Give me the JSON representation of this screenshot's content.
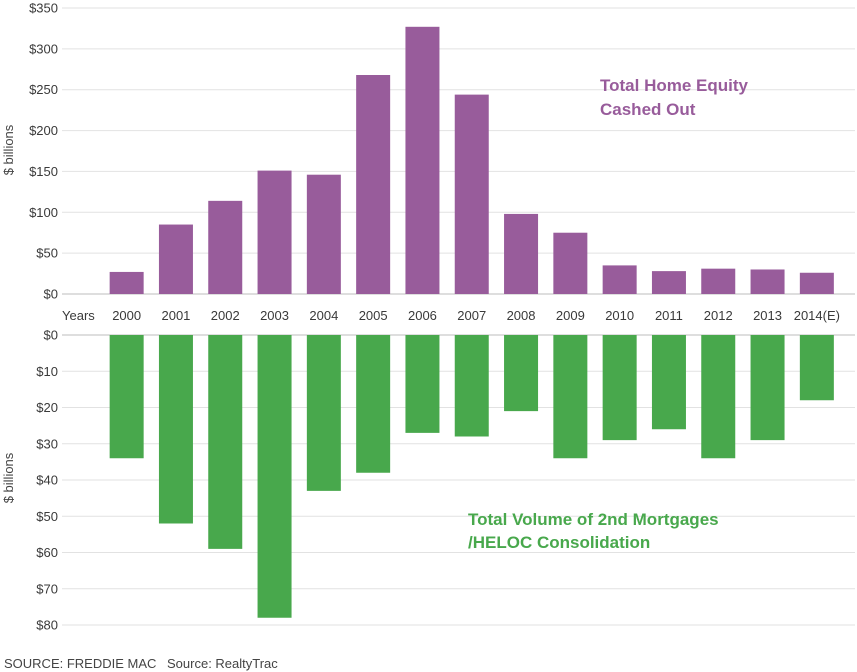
{
  "chart_data": [
    {
      "type": "bar",
      "categories": [
        "2000",
        "2001",
        "2002",
        "2003",
        "2004",
        "2005",
        "2006",
        "2007",
        "2008",
        "2009",
        "2010",
        "2011",
        "2012",
        "2013",
        "2014(E)"
      ],
      "values": [
        27,
        85,
        114,
        151,
        146,
        268,
        327,
        244,
        98,
        75,
        35,
        28,
        31,
        30,
        26
      ],
      "annotation": [
        "Total Home Equity",
        "Cashed Out"
      ],
      "ylabel": "$ billions",
      "ylim": [
        0,
        350
      ],
      "yticks": [
        "$0",
        "$50",
        "$100",
        "$150",
        "$200",
        "$250",
        "$300",
        "$350"
      ],
      "xlabel": "Years",
      "color": "#985c9b",
      "annotation_color": "#985c9b",
      "grid": true
    },
    {
      "type": "bar",
      "orientation": "downward",
      "categories": [
        "2000",
        "2001",
        "2002",
        "2003",
        "2004",
        "2005",
        "2006",
        "2007",
        "2008",
        "2009",
        "2010",
        "2011",
        "2012",
        "2013",
        "2014(E)"
      ],
      "values": [
        34,
        52,
        59,
        78,
        43,
        38,
        27,
        28,
        21,
        34,
        29,
        26,
        34,
        29,
        18
      ],
      "annotation": [
        "Total Volume of 2nd Mortgages",
        "/HELOC Consolidation"
      ],
      "ylabel": "$ billions",
      "ylim": [
        0,
        80
      ],
      "yticks": [
        "$0",
        "$10",
        "$20",
        "$30",
        "$40",
        "$50",
        "$60",
        "$70",
        "$80"
      ],
      "color": "#48a84c",
      "annotation_color": "#48a84c",
      "grid": true
    }
  ],
  "sources": {
    "first": "SOURCE: FREDDIE MAC",
    "second": "Source: RealtyTrac"
  },
  "colors": {
    "grid": "#e2e2e2",
    "baseline": "#bdbdbd",
    "text": "#3a3a3a"
  }
}
